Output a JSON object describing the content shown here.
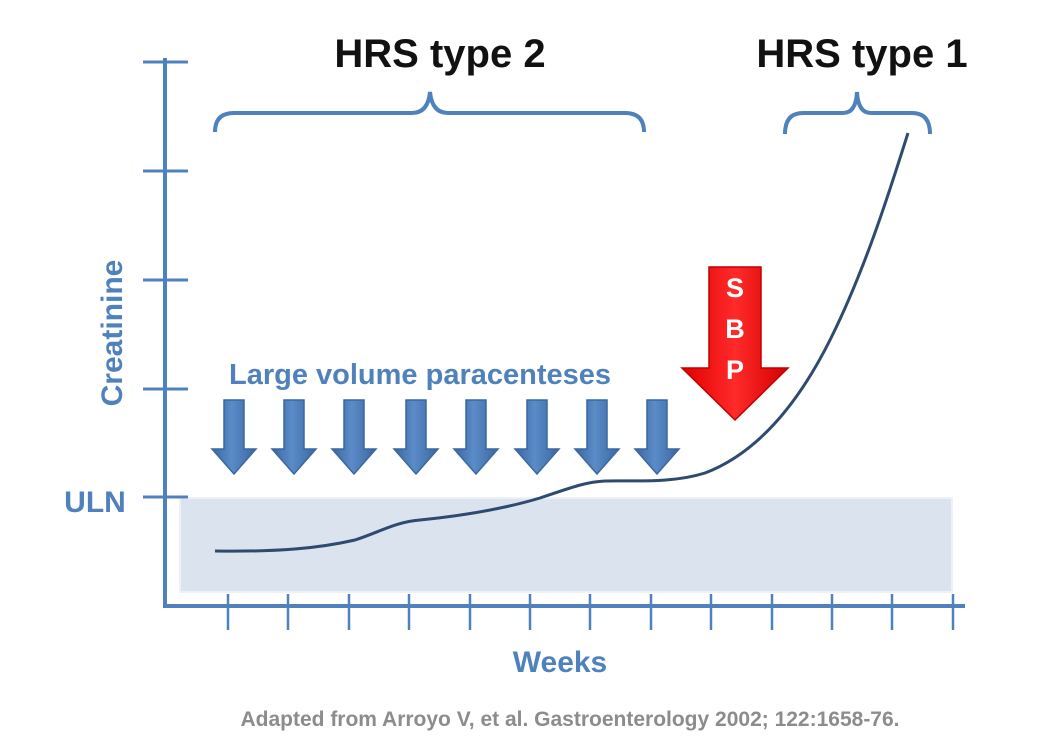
{
  "titles": {
    "type2": "HRS type 2",
    "type1": "HRS type 1"
  },
  "axes": {
    "ylabel": "Creatinine",
    "xlabel": "Weeks",
    "uln_label": "ULN"
  },
  "annotations": {
    "paracentesis_label": "Large volume paracenteses",
    "sbp_letters": [
      "S",
      "B",
      "P"
    ]
  },
  "citation": "Adapted from Arroyo V, et al. Gastroenterology 2002; 122:1658-76.",
  "colors": {
    "axis": "#4f81bd",
    "curve": "#2f4a6f",
    "normal_band": "#dbe3ef",
    "paracentesis_arrow": "#4a7ab6",
    "sbp_arrow": "#ff0000"
  }
}
